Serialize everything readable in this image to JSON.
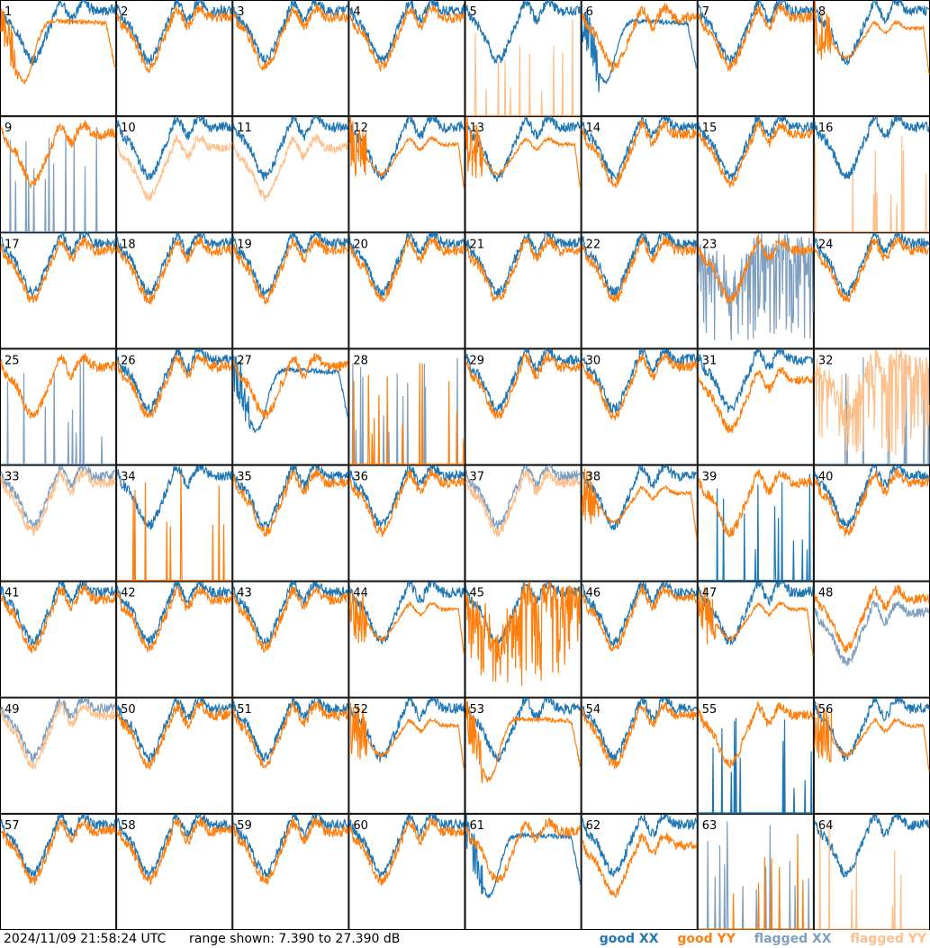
{
  "footer": {
    "timestamp": "2024/11/09 21:58:24 UTC",
    "range_text": "range shown: 7.390 to 27.390 dB"
  },
  "legend": [
    {
      "label": "good XX",
      "color": "#1f77b4"
    },
    {
      "label": "good YY",
      "color": "#ff7f0e"
    },
    {
      "label": "flagged XX",
      "color": "#7f9fbf"
    },
    {
      "label": "flagged YY",
      "color": "#ffbf8a"
    }
  ],
  "chart_data": {
    "type": "line",
    "grid_rows": 8,
    "grid_cols": 8,
    "ylim_db": [
      7.39,
      27.39
    ],
    "colors": {
      "good_xx": "#1f77b4",
      "good_yy": "#ff7f0e",
      "flagged_xx": "#7f9fbf",
      "flagged_yy": "#ffbf8a"
    },
    "panels": [
      {
        "label": "1",
        "xx": "good",
        "yy": "good",
        "xx_shape": "normal",
        "yy_shape": "dip"
      },
      {
        "label": "2",
        "xx": "good",
        "yy": "good",
        "xx_shape": "normal",
        "yy_shape": "normal"
      },
      {
        "label": "3",
        "xx": "good",
        "yy": "good",
        "xx_shape": "normal",
        "yy_shape": "normal"
      },
      {
        "label": "4",
        "xx": "good",
        "yy": "good",
        "xx_shape": "normal",
        "yy_shape": "normal"
      },
      {
        "label": "5",
        "xx": "good",
        "yy": "flagged",
        "xx_shape": "normal",
        "yy_shape": "spikes"
      },
      {
        "label": "6",
        "xx": "good",
        "yy": "good",
        "xx_shape": "dip",
        "yy_shape": "normal"
      },
      {
        "label": "7",
        "xx": "good",
        "yy": "good",
        "xx_shape": "normal",
        "yy_shape": "normal"
      },
      {
        "label": "8",
        "xx": "good",
        "yy": "good",
        "xx_shape": "normal",
        "yy_shape": "flat"
      },
      {
        "label": "9",
        "xx": "flagged",
        "yy": "good",
        "xx_shape": "spikes",
        "yy_shape": "normal"
      },
      {
        "label": "10",
        "xx": "good",
        "yy": "flagged",
        "xx_shape": "normal",
        "yy_shape": "low"
      },
      {
        "label": "11",
        "xx": "good",
        "yy": "flagged",
        "xx_shape": "normal",
        "yy_shape": "low"
      },
      {
        "label": "12",
        "xx": "good",
        "yy": "good",
        "xx_shape": "normal",
        "yy_shape": "flat"
      },
      {
        "label": "13",
        "xx": "good",
        "yy": "good",
        "xx_shape": "normal",
        "yy_shape": "flat"
      },
      {
        "label": "14",
        "xx": "good",
        "yy": "good",
        "xx_shape": "normal",
        "yy_shape": "normal"
      },
      {
        "label": "15",
        "xx": "good",
        "yy": "good",
        "xx_shape": "normal",
        "yy_shape": "normal"
      },
      {
        "label": "16",
        "xx": "good",
        "yy": "flagged",
        "xx_shape": "normal",
        "yy_shape": "spikes"
      },
      {
        "label": "17",
        "xx": "good",
        "yy": "good",
        "xx_shape": "normal",
        "yy_shape": "normal"
      },
      {
        "label": "18",
        "xx": "good",
        "yy": "good",
        "xx_shape": "normal",
        "yy_shape": "normal"
      },
      {
        "label": "19",
        "xx": "good",
        "yy": "good",
        "xx_shape": "normal",
        "yy_shape": "normal"
      },
      {
        "label": "20",
        "xx": "good",
        "yy": "good",
        "xx_shape": "normal",
        "yy_shape": "normal"
      },
      {
        "label": "21",
        "xx": "good",
        "yy": "good",
        "xx_shape": "normal",
        "yy_shape": "normal"
      },
      {
        "label": "22",
        "xx": "good",
        "yy": "good",
        "xx_shape": "normal",
        "yy_shape": "normal"
      },
      {
        "label": "23",
        "xx": "flagged",
        "yy": "good",
        "xx_shape": "noisy",
        "yy_shape": "normal"
      },
      {
        "label": "24",
        "xx": "good",
        "yy": "good",
        "xx_shape": "normal",
        "yy_shape": "normal"
      },
      {
        "label": "25",
        "xx": "flagged",
        "yy": "good",
        "xx_shape": "spikes",
        "yy_shape": "normal"
      },
      {
        "label": "26",
        "xx": "good",
        "yy": "good",
        "xx_shape": "normal",
        "yy_shape": "normal"
      },
      {
        "label": "27",
        "xx": "good",
        "yy": "good",
        "xx_shape": "dip",
        "yy_shape": "normal"
      },
      {
        "label": "28",
        "xx": "flagged",
        "yy": "good",
        "xx_shape": "spikes",
        "yy_shape": "spikes"
      },
      {
        "label": "29",
        "xx": "good",
        "yy": "good",
        "xx_shape": "normal",
        "yy_shape": "normal"
      },
      {
        "label": "30",
        "xx": "good",
        "yy": "good",
        "xx_shape": "normal",
        "yy_shape": "normal"
      },
      {
        "label": "31",
        "xx": "good",
        "yy": "good",
        "xx_shape": "normal",
        "yy_shape": "low"
      },
      {
        "label": "32",
        "xx": "flagged",
        "yy": "flagged",
        "xx_shape": "spikes",
        "yy_shape": "noisy"
      },
      {
        "label": "33",
        "xx": "flagged",
        "yy": "flagged",
        "xx_shape": "normal",
        "yy_shape": "normal"
      },
      {
        "label": "34",
        "xx": "good",
        "yy": "good",
        "xx_shape": "normal",
        "yy_shape": "spikes"
      },
      {
        "label": "35",
        "xx": "good",
        "yy": "good",
        "xx_shape": "normal",
        "yy_shape": "normal"
      },
      {
        "label": "36",
        "xx": "good",
        "yy": "good",
        "xx_shape": "normal",
        "yy_shape": "normal"
      },
      {
        "label": "37",
        "xx": "flagged",
        "yy": "flagged",
        "xx_shape": "normal",
        "yy_shape": "normal"
      },
      {
        "label": "38",
        "xx": "good",
        "yy": "good",
        "xx_shape": "normal",
        "yy_shape": "flat"
      },
      {
        "label": "39",
        "xx": "good",
        "yy": "good",
        "xx_shape": "spikes",
        "yy_shape": "normal"
      },
      {
        "label": "40",
        "xx": "good",
        "yy": "good",
        "xx_shape": "normal",
        "yy_shape": "normal"
      },
      {
        "label": "41",
        "xx": "good",
        "yy": "good",
        "xx_shape": "normal",
        "yy_shape": "normal"
      },
      {
        "label": "42",
        "xx": "good",
        "yy": "good",
        "xx_shape": "normal",
        "yy_shape": "normal"
      },
      {
        "label": "43",
        "xx": "good",
        "yy": "good",
        "xx_shape": "normal",
        "yy_shape": "normal"
      },
      {
        "label": "44",
        "xx": "good",
        "yy": "good",
        "xx_shape": "normal",
        "yy_shape": "flat"
      },
      {
        "label": "45",
        "xx": "good",
        "yy": "good",
        "xx_shape": "normal",
        "yy_shape": "noisy"
      },
      {
        "label": "46",
        "xx": "good",
        "yy": "good",
        "xx_shape": "normal",
        "yy_shape": "normal"
      },
      {
        "label": "47",
        "xx": "good",
        "yy": "good",
        "xx_shape": "normal",
        "yy_shape": "flat"
      },
      {
        "label": "48",
        "xx": "flagged",
        "yy": "good",
        "xx_shape": "low",
        "yy_shape": "normal"
      },
      {
        "label": "49",
        "xx": "flagged",
        "yy": "flagged",
        "xx_shape": "normal",
        "yy_shape": "normal"
      },
      {
        "label": "50",
        "xx": "good",
        "yy": "good",
        "xx_shape": "normal",
        "yy_shape": "normal"
      },
      {
        "label": "51",
        "xx": "good",
        "yy": "good",
        "xx_shape": "normal",
        "yy_shape": "normal"
      },
      {
        "label": "52",
        "xx": "good",
        "yy": "good",
        "xx_shape": "normal",
        "yy_shape": "flat"
      },
      {
        "label": "53",
        "xx": "good",
        "yy": "good",
        "xx_shape": "normal",
        "yy_shape": "dip"
      },
      {
        "label": "54",
        "xx": "good",
        "yy": "good",
        "xx_shape": "normal",
        "yy_shape": "normal"
      },
      {
        "label": "55",
        "xx": "good",
        "yy": "good",
        "xx_shape": "spikes",
        "yy_shape": "normal"
      },
      {
        "label": "56",
        "xx": "good",
        "yy": "good",
        "xx_shape": "normal",
        "yy_shape": "flat"
      },
      {
        "label": "57",
        "xx": "good",
        "yy": "good",
        "xx_shape": "normal",
        "yy_shape": "normal"
      },
      {
        "label": "58",
        "xx": "good",
        "yy": "good",
        "xx_shape": "normal",
        "yy_shape": "normal"
      },
      {
        "label": "59",
        "xx": "good",
        "yy": "good",
        "xx_shape": "normal",
        "yy_shape": "normal"
      },
      {
        "label": "60",
        "xx": "good",
        "yy": "good",
        "xx_shape": "normal",
        "yy_shape": "normal"
      },
      {
        "label": "61",
        "xx": "good",
        "yy": "good",
        "xx_shape": "dip",
        "yy_shape": "normal"
      },
      {
        "label": "62",
        "xx": "good",
        "yy": "good",
        "xx_shape": "normal",
        "yy_shape": "low"
      },
      {
        "label": "63",
        "xx": "flagged",
        "yy": "good",
        "xx_shape": "spikes",
        "yy_shape": "spikes"
      },
      {
        "label": "64",
        "xx": "good",
        "yy": "flagged",
        "xx_shape": "normal",
        "yy_shape": "spikes"
      }
    ]
  }
}
